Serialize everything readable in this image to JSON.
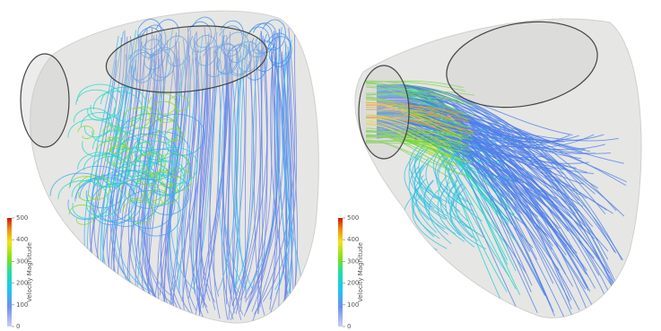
{
  "panels": [
    {
      "colorbar": {
        "title": "Velocity Magnitude",
        "ticks": [
          0,
          100,
          200,
          300,
          400,
          500
        ]
      }
    },
    {
      "colorbar": {
        "title": "Velocity Magnitude",
        "ticks": [
          0,
          100,
          200,
          300,
          400,
          500
        ]
      }
    }
  ]
}
